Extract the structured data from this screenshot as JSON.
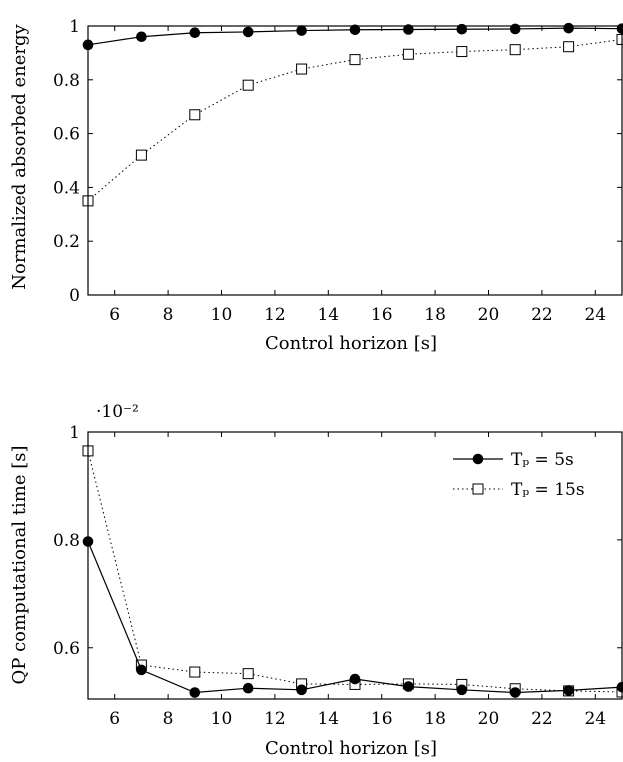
{
  "chart_data": [
    {
      "type": "line",
      "xlabel": "Control horizon [s]",
      "ylabel": "Normalized absorbed energy",
      "xlim": [
        5,
        25
      ],
      "ylim": [
        0,
        1
      ],
      "xticks": [
        6,
        8,
        10,
        12,
        14,
        16,
        18,
        20,
        22,
        24
      ],
      "yticks": [
        0,
        0.2,
        0.4,
        0.6,
        0.8,
        1
      ],
      "ytick_labels": [
        "0",
        "0.2",
        "0.4",
        "0.6",
        "0.8",
        "1"
      ],
      "grid": false,
      "x": [
        5,
        7,
        9,
        11,
        13,
        15,
        17,
        19,
        21,
        23,
        25
      ],
      "series": [
        {
          "style": "solid-filled-circle",
          "values": [
            0.93,
            0.96,
            0.975,
            0.978,
            0.983,
            0.986,
            0.987,
            0.988,
            0.989,
            0.992,
            0.99
          ]
        },
        {
          "style": "dotted-open-square",
          "values": [
            0.35,
            0.52,
            0.67,
            0.78,
            0.84,
            0.875,
            0.895,
            0.905,
            0.912,
            0.923,
            0.95
          ]
        }
      ]
    },
    {
      "type": "line",
      "xlabel": "Control horizon [s]",
      "ylabel": "QP computational time [s]",
      "scale_note": "·10⁻²",
      "xlim": [
        5,
        25
      ],
      "ylim": [
        0.505,
        1
      ],
      "xticks": [
        6,
        8,
        10,
        12,
        14,
        16,
        18,
        20,
        22,
        24
      ],
      "yticks": [
        0.6,
        0.8,
        1
      ],
      "ytick_labels": [
        "0.6",
        "0.8",
        "1"
      ],
      "grid": false,
      "legend_position": "top-right",
      "x": [
        5,
        7,
        9,
        11,
        13,
        15,
        17,
        19,
        21,
        23,
        25
      ],
      "series": [
        {
          "name": "Tₚ = 5s",
          "style": "solid-filled-circle",
          "values": [
            0.797,
            0.559,
            0.517,
            0.525,
            0.522,
            0.542,
            0.528,
            0.522,
            0.517,
            0.521,
            0.527
          ]
        },
        {
          "name": "Tₚ = 15s",
          "style": "dotted-open-square",
          "values": [
            0.965,
            0.568,
            0.555,
            0.552,
            0.533,
            0.532,
            0.533,
            0.532,
            0.524,
            0.52,
            0.518
          ]
        }
      ]
    }
  ]
}
